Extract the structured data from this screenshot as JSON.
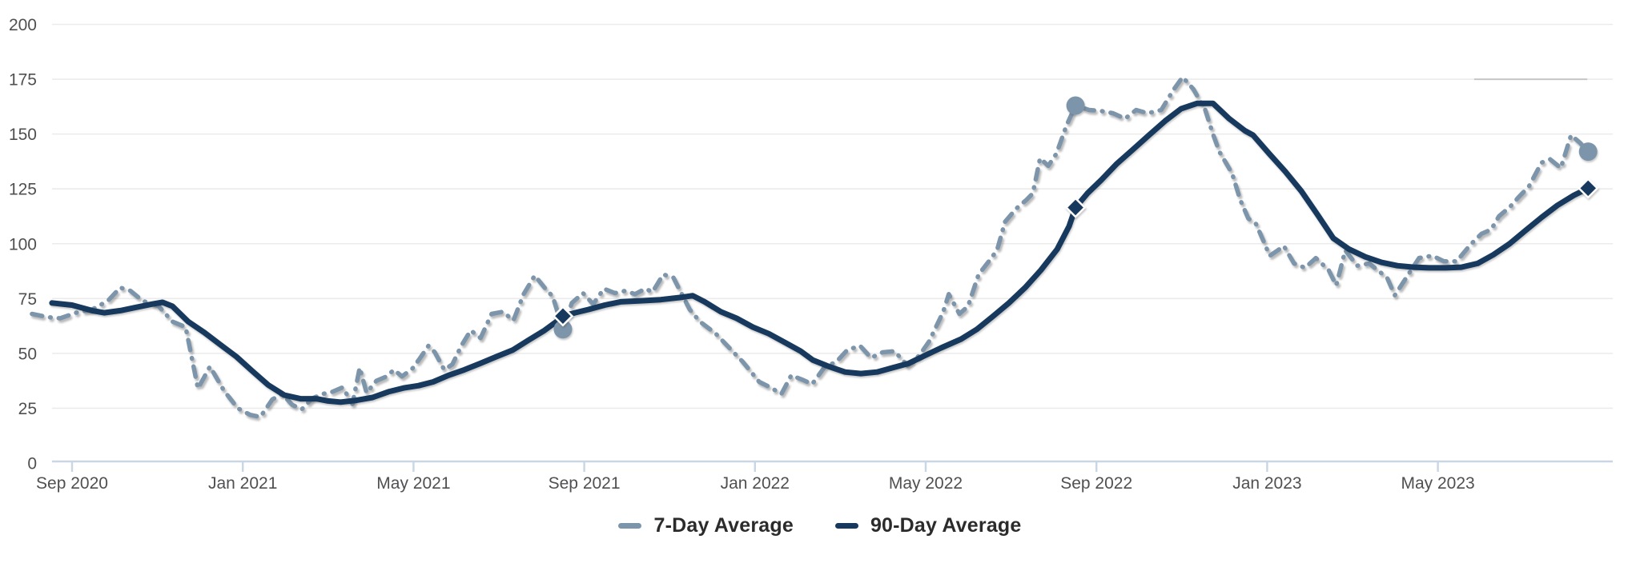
{
  "chart_data": {
    "type": "line",
    "title": "",
    "x_axis": {
      "unit": "months_since_sep_2020",
      "ticks": [
        {
          "t": 0,
          "label": "Sep 2020"
        },
        {
          "t": 4,
          "label": "Jan 2021"
        },
        {
          "t": 8,
          "label": "May 2021"
        },
        {
          "t": 12,
          "label": "Sep 2021"
        },
        {
          "t": 16,
          "label": "Jan 2022"
        },
        {
          "t": 20,
          "label": "May 2022"
        },
        {
          "t": 24,
          "label": "Sep 2022"
        },
        {
          "t": 28,
          "label": "Jan 2023"
        },
        {
          "t": 32,
          "label": "May 2023"
        }
      ]
    },
    "y_axis": {
      "range": [
        0,
        200
      ],
      "ticks": [
        0,
        25,
        50,
        75,
        100,
        125,
        150,
        175,
        200
      ],
      "grid": true
    },
    "legend_position": "bottom-center",
    "highlight_segment": {
      "y_value": 175,
      "t_start": 32.85,
      "t_end": 35.5
    },
    "series": [
      {
        "name": "7-Day Average",
        "style": "dashed",
        "color": "#7d95ab",
        "points": [
          [
            -0.94,
            68
          ],
          [
            -0.56,
            66.5
          ],
          [
            -0.28,
            66
          ],
          [
            0.09,
            68.5
          ],
          [
            0.47,
            70
          ],
          [
            0.84,
            74
          ],
          [
            1.13,
            80
          ],
          [
            1.37,
            78.5
          ],
          [
            1.65,
            74
          ],
          [
            2.03,
            71.5
          ],
          [
            2.35,
            64.5
          ],
          [
            2.66,
            62
          ],
          [
            2.95,
            34
          ],
          [
            3.23,
            44
          ],
          [
            3.56,
            33
          ],
          [
            3.88,
            25
          ],
          [
            4.17,
            22
          ],
          [
            4.41,
            21
          ],
          [
            4.69,
            29
          ],
          [
            4.92,
            31.5
          ],
          [
            5.16,
            26.5
          ],
          [
            5.38,
            24.5
          ],
          [
            5.63,
            29.5
          ],
          [
            5.87,
            31.5
          ],
          [
            6.1,
            32.5
          ],
          [
            6.34,
            34.5
          ],
          [
            6.57,
            27
          ],
          [
            6.74,
            43.5
          ],
          [
            6.9,
            32
          ],
          [
            7.13,
            37.5
          ],
          [
            7.37,
            39.5
          ],
          [
            7.54,
            42.5
          ],
          [
            7.73,
            39.5
          ],
          [
            7.97,
            43
          ],
          [
            8.14,
            47.5
          ],
          [
            8.35,
            53.5
          ],
          [
            8.5,
            50.5
          ],
          [
            8.72,
            42.5
          ],
          [
            8.91,
            45
          ],
          [
            9.12,
            53.5
          ],
          [
            9.34,
            60.5
          ],
          [
            9.57,
            57
          ],
          [
            9.83,
            68
          ],
          [
            10.09,
            69
          ],
          [
            10.34,
            65
          ],
          [
            10.58,
            77
          ],
          [
            10.84,
            85.5
          ],
          [
            11.09,
            79.5
          ],
          [
            11.26,
            76
          ],
          [
            11.5,
            61
          ],
          [
            11.71,
            73
          ],
          [
            11.97,
            77.5
          ],
          [
            12.21,
            72.5
          ],
          [
            12.46,
            79.5
          ],
          [
            12.72,
            77.5
          ],
          [
            12.96,
            78.5
          ],
          [
            13.19,
            77
          ],
          [
            13.43,
            79.5
          ],
          [
            13.6,
            78
          ],
          [
            13.85,
            86
          ],
          [
            14.09,
            84.5
          ],
          [
            14.47,
            70
          ],
          [
            14.71,
            64.5
          ],
          [
            15.08,
            59
          ],
          [
            15.4,
            52.5
          ],
          [
            15.72,
            46
          ],
          [
            15.91,
            41.5
          ],
          [
            16.1,
            37
          ],
          [
            16.36,
            34.5
          ],
          [
            16.62,
            31.5
          ],
          [
            16.85,
            40
          ],
          [
            17.11,
            38
          ],
          [
            17.34,
            36
          ],
          [
            17.64,
            44
          ],
          [
            17.9,
            46
          ],
          [
            18.16,
            51.5
          ],
          [
            18.46,
            53.5
          ],
          [
            18.72,
            48
          ],
          [
            18.99,
            50.5
          ],
          [
            19.27,
            51
          ],
          [
            19.57,
            44.5
          ],
          [
            19.85,
            49
          ],
          [
            20.08,
            55.5
          ],
          [
            20.41,
            69
          ],
          [
            20.54,
            77
          ],
          [
            20.79,
            68
          ],
          [
            20.99,
            71.5
          ],
          [
            21.24,
            86
          ],
          [
            21.48,
            92
          ],
          [
            21.67,
            97
          ],
          [
            21.86,
            110
          ],
          [
            22.12,
            116
          ],
          [
            22.36,
            120
          ],
          [
            22.51,
            123
          ],
          [
            22.68,
            139
          ],
          [
            22.87,
            135.5
          ],
          [
            23.06,
            141
          ],
          [
            23.3,
            154
          ],
          [
            23.51,
            163
          ],
          [
            23.83,
            161
          ],
          [
            24.11,
            160.5
          ],
          [
            24.39,
            159.5
          ],
          [
            24.67,
            157
          ],
          [
            24.93,
            161
          ],
          [
            25.2,
            159.5
          ],
          [
            25.52,
            161
          ],
          [
            25.8,
            170
          ],
          [
            26.02,
            176
          ],
          [
            26.27,
            170.5
          ],
          [
            26.55,
            161
          ],
          [
            26.73,
            150
          ],
          [
            26.88,
            142
          ],
          [
            27.18,
            132
          ],
          [
            27.37,
            120
          ],
          [
            27.56,
            111.5
          ],
          [
            27.74,
            109
          ],
          [
            27.93,
            100.5
          ],
          [
            28.06,
            94.5
          ],
          [
            28.25,
            97
          ],
          [
            28.39,
            99
          ],
          [
            28.63,
            91
          ],
          [
            28.89,
            89
          ],
          [
            29.14,
            93.5
          ],
          [
            29.44,
            88
          ],
          [
            29.62,
            81
          ],
          [
            29.83,
            97
          ],
          [
            30.11,
            90
          ],
          [
            30.39,
            91
          ],
          [
            30.81,
            84.5
          ],
          [
            30.99,
            76.5
          ],
          [
            31.31,
            86
          ],
          [
            31.56,
            93.5
          ],
          [
            31.87,
            94.5
          ],
          [
            32.14,
            92
          ],
          [
            32.44,
            92
          ],
          [
            32.76,
            99.5
          ],
          [
            33.02,
            104.5
          ],
          [
            33.25,
            106.5
          ],
          [
            33.43,
            112.5
          ],
          [
            33.7,
            117
          ],
          [
            33.88,
            121
          ],
          [
            34.13,
            126
          ],
          [
            34.43,
            137
          ],
          [
            34.63,
            138.5
          ],
          [
            34.88,
            134.5
          ],
          [
            35.12,
            149.5
          ],
          [
            35.33,
            146
          ],
          [
            35.52,
            142
          ]
        ]
      },
      {
        "name": "90-Day Average",
        "style": "solid",
        "color": "#17395e",
        "points": [
          [
            -0.47,
            73
          ],
          [
            0,
            72
          ],
          [
            0.47,
            69.5
          ],
          [
            0.75,
            68.5
          ],
          [
            1.13,
            69.5
          ],
          [
            1.5,
            71
          ],
          [
            1.88,
            72.5
          ],
          [
            2.12,
            73.3
          ],
          [
            2.35,
            71.5
          ],
          [
            2.72,
            64.5
          ],
          [
            3.1,
            59.5
          ],
          [
            3.47,
            54
          ],
          [
            3.85,
            48.5
          ],
          [
            4.22,
            42
          ],
          [
            4.6,
            35.5
          ],
          [
            4.97,
            31
          ],
          [
            5.35,
            29.3
          ],
          [
            5.72,
            29.3
          ],
          [
            6.0,
            28.3
          ],
          [
            6.29,
            27.8
          ],
          [
            6.66,
            28.6
          ],
          [
            7.04,
            29.9
          ],
          [
            7.41,
            32.5
          ],
          [
            7.79,
            34.3
          ],
          [
            8.12,
            35.3
          ],
          [
            8.46,
            37
          ],
          [
            8.82,
            40
          ],
          [
            9.19,
            42.5
          ],
          [
            9.57,
            45.5
          ],
          [
            9.94,
            48.5
          ],
          [
            10.32,
            51.5
          ],
          [
            10.69,
            56
          ],
          [
            11.07,
            60.5
          ],
          [
            11.35,
            64.5
          ],
          [
            11.5,
            67
          ],
          [
            11.78,
            68.5
          ],
          [
            12.1,
            70
          ],
          [
            12.48,
            72
          ],
          [
            12.85,
            73.5
          ],
          [
            13.32,
            74
          ],
          [
            13.79,
            74.5
          ],
          [
            14.26,
            75.5
          ],
          [
            14.54,
            76.3
          ],
          [
            14.82,
            73.5
          ],
          [
            15.2,
            69
          ],
          [
            15.57,
            66
          ],
          [
            15.95,
            62
          ],
          [
            16.32,
            59
          ],
          [
            16.7,
            55
          ],
          [
            17.07,
            51
          ],
          [
            17.35,
            47
          ],
          [
            17.73,
            44
          ],
          [
            18.11,
            41.5
          ],
          [
            18.48,
            40.8
          ],
          [
            18.86,
            41.5
          ],
          [
            19.23,
            43.5
          ],
          [
            19.61,
            45.5
          ],
          [
            19.98,
            49
          ],
          [
            20.36,
            52.5
          ],
          [
            20.83,
            56.5
          ],
          [
            21.2,
            61
          ],
          [
            21.58,
            67
          ],
          [
            21.95,
            73
          ],
          [
            22.33,
            80
          ],
          [
            22.7,
            88
          ],
          [
            23.08,
            97.5
          ],
          [
            23.36,
            108
          ],
          [
            23.51,
            116.5
          ],
          [
            23.79,
            123
          ],
          [
            24.11,
            129
          ],
          [
            24.48,
            136.5
          ],
          [
            24.86,
            143
          ],
          [
            25.23,
            149.5
          ],
          [
            25.61,
            156
          ],
          [
            25.98,
            161.5
          ],
          [
            26.36,
            164
          ],
          [
            26.73,
            164
          ],
          [
            27.11,
            157
          ],
          [
            27.48,
            151.5
          ],
          [
            27.67,
            149.5
          ],
          [
            28.05,
            141
          ],
          [
            28.42,
            133
          ],
          [
            28.8,
            124
          ],
          [
            29.17,
            113.5
          ],
          [
            29.55,
            102.5
          ],
          [
            29.92,
            97.5
          ],
          [
            30.3,
            94
          ],
          [
            30.68,
            91.5
          ],
          [
            31.05,
            90
          ],
          [
            31.43,
            89.3
          ],
          [
            31.8,
            89
          ],
          [
            32.18,
            89
          ],
          [
            32.55,
            89.3
          ],
          [
            32.93,
            91
          ],
          [
            33.3,
            95
          ],
          [
            33.68,
            100
          ],
          [
            34.05,
            106
          ],
          [
            34.43,
            112
          ],
          [
            34.8,
            117.5
          ],
          [
            35.18,
            122
          ],
          [
            35.52,
            125.3
          ]
        ]
      }
    ],
    "markers": [
      {
        "series": "7-Day Average",
        "shape": "circle",
        "t": 11.5,
        "value": 61
      },
      {
        "series": "90-Day Average",
        "shape": "diamond",
        "t": 11.5,
        "value": 67
      },
      {
        "series": "7-Day Average",
        "shape": "circle",
        "t": 23.51,
        "value": 163
      },
      {
        "series": "90-Day Average",
        "shape": "diamond",
        "t": 23.51,
        "value": 116.5
      },
      {
        "series": "7-Day Average",
        "shape": "circle",
        "t": 35.52,
        "value": 142
      },
      {
        "series": "90-Day Average",
        "shape": "diamond",
        "t": 35.52,
        "value": 125.3
      }
    ]
  },
  "legend": {
    "items": [
      {
        "label": "7-Day Average",
        "color": "#7d95ab"
      },
      {
        "label": "90-Day Average",
        "color": "#17395e"
      }
    ]
  },
  "colors": {
    "seven_day": "#7d95ab",
    "ninety_day": "#17395e",
    "grid": "#ebebeb",
    "grid_highlight": "#c6c6c6",
    "axis": "#c9d6e3",
    "tick_label": "#4f5052",
    "legend_text": "#2b2b2b",
    "background": "#ffffff"
  }
}
